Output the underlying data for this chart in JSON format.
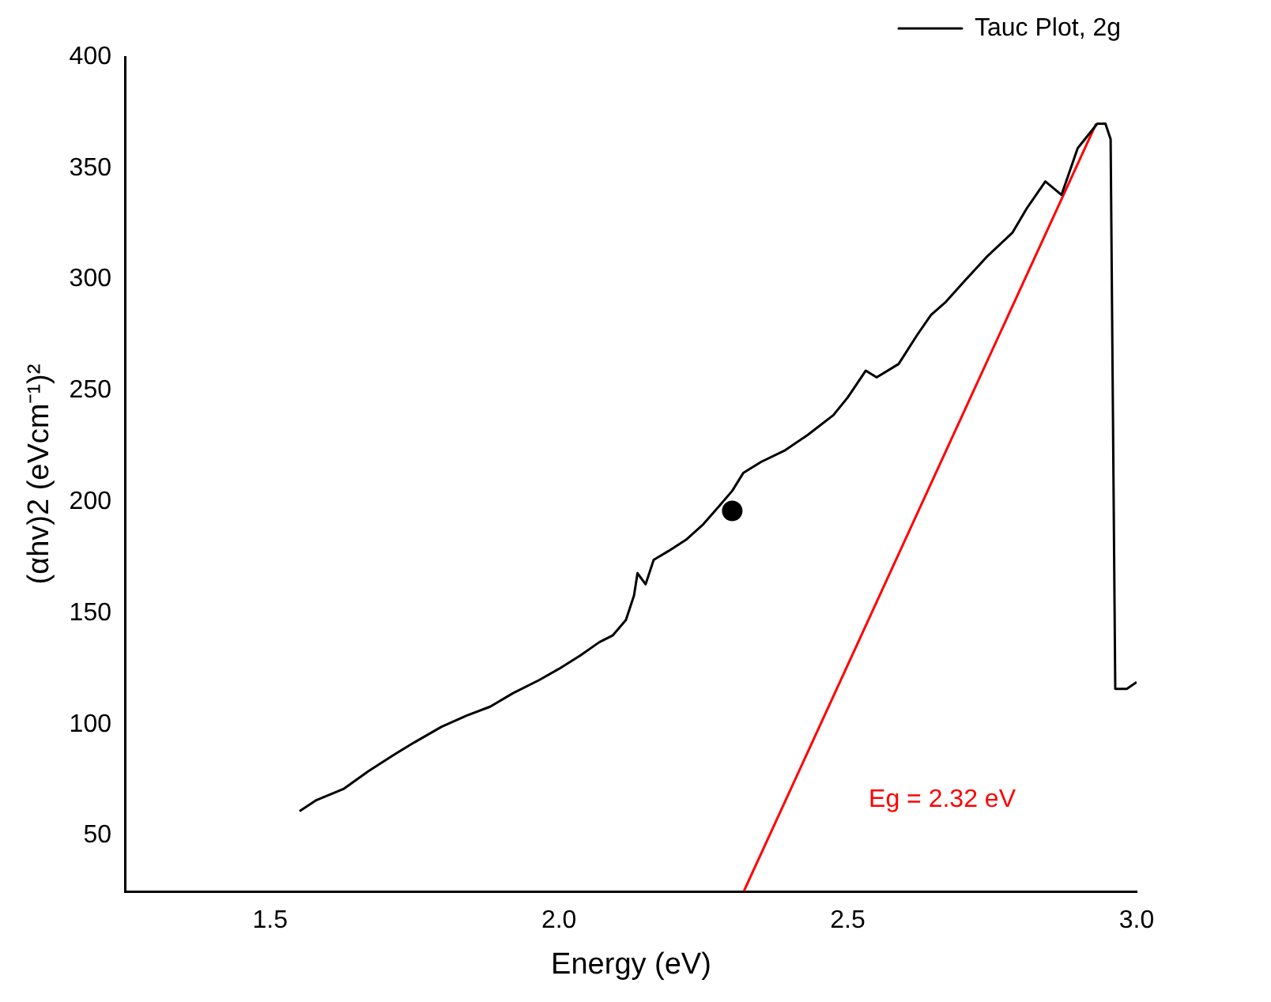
{
  "chart_data": {
    "type": "line",
    "xlabel": "Energy (eV)",
    "ylabel": "(αhv)2 (eVcm⁻¹)²",
    "xlim": [
      1.25,
      3.0
    ],
    "ylim": [
      25,
      400
    ],
    "xticks": [
      {
        "value": 1.5,
        "label": "1.5"
      },
      {
        "value": 2.0,
        "label": "2.0"
      },
      {
        "value": 2.5,
        "label": "2.5"
      },
      {
        "value": 3.0,
        "label": "3.0"
      }
    ],
    "yticks": [
      50,
      100,
      150,
      200,
      250,
      300,
      350,
      400
    ],
    "grid": false,
    "legend": "top right",
    "marker": "none",
    "series": [
      {
        "name": "Tauc Plot, 2g",
        "color": "#000000",
        "x": [
          1.551,
          1.58,
          1.627,
          1.67,
          1.712,
          1.75,
          1.797,
          1.84,
          1.881,
          1.92,
          1.966,
          2.0,
          2.037,
          2.07,
          2.093,
          2.116,
          2.13,
          2.136,
          2.15,
          2.164,
          2.19,
          2.22,
          2.25,
          2.277,
          2.3,
          2.319,
          2.35,
          2.39,
          2.43,
          2.475,
          2.5,
          2.531,
          2.55,
          2.588,
          2.62,
          2.644,
          2.67,
          2.701,
          2.74,
          2.785,
          2.81,
          2.842,
          2.87,
          2.898,
          2.932,
          2.946,
          2.955,
          2.963,
          2.983,
          3.0
        ],
        "values": [
          61,
          66,
          71,
          79,
          86,
          92,
          99,
          104,
          108,
          114,
          120,
          125,
          131,
          137,
          140,
          147,
          158,
          168,
          163,
          174,
          178,
          183,
          190,
          198,
          205,
          213,
          218,
          223,
          230,
          239,
          247,
          259,
          256,
          262,
          275,
          284,
          290,
          299,
          310,
          321,
          332,
          344,
          338,
          359,
          370,
          370,
          363,
          116,
          116,
          119
        ]
      },
      {
        "type": "line",
        "color": "#ff0000",
        "x": [
          2.32,
          2.93
        ],
        "values": [
          25,
          370
        ]
      },
      {
        "type": "scatter",
        "color": "#000000",
        "marker": "circle",
        "x": [
          2.3
        ],
        "values": [
          196
        ]
      }
    ],
    "annotations": [
      "Eg = 2.32 eV"
    ]
  }
}
